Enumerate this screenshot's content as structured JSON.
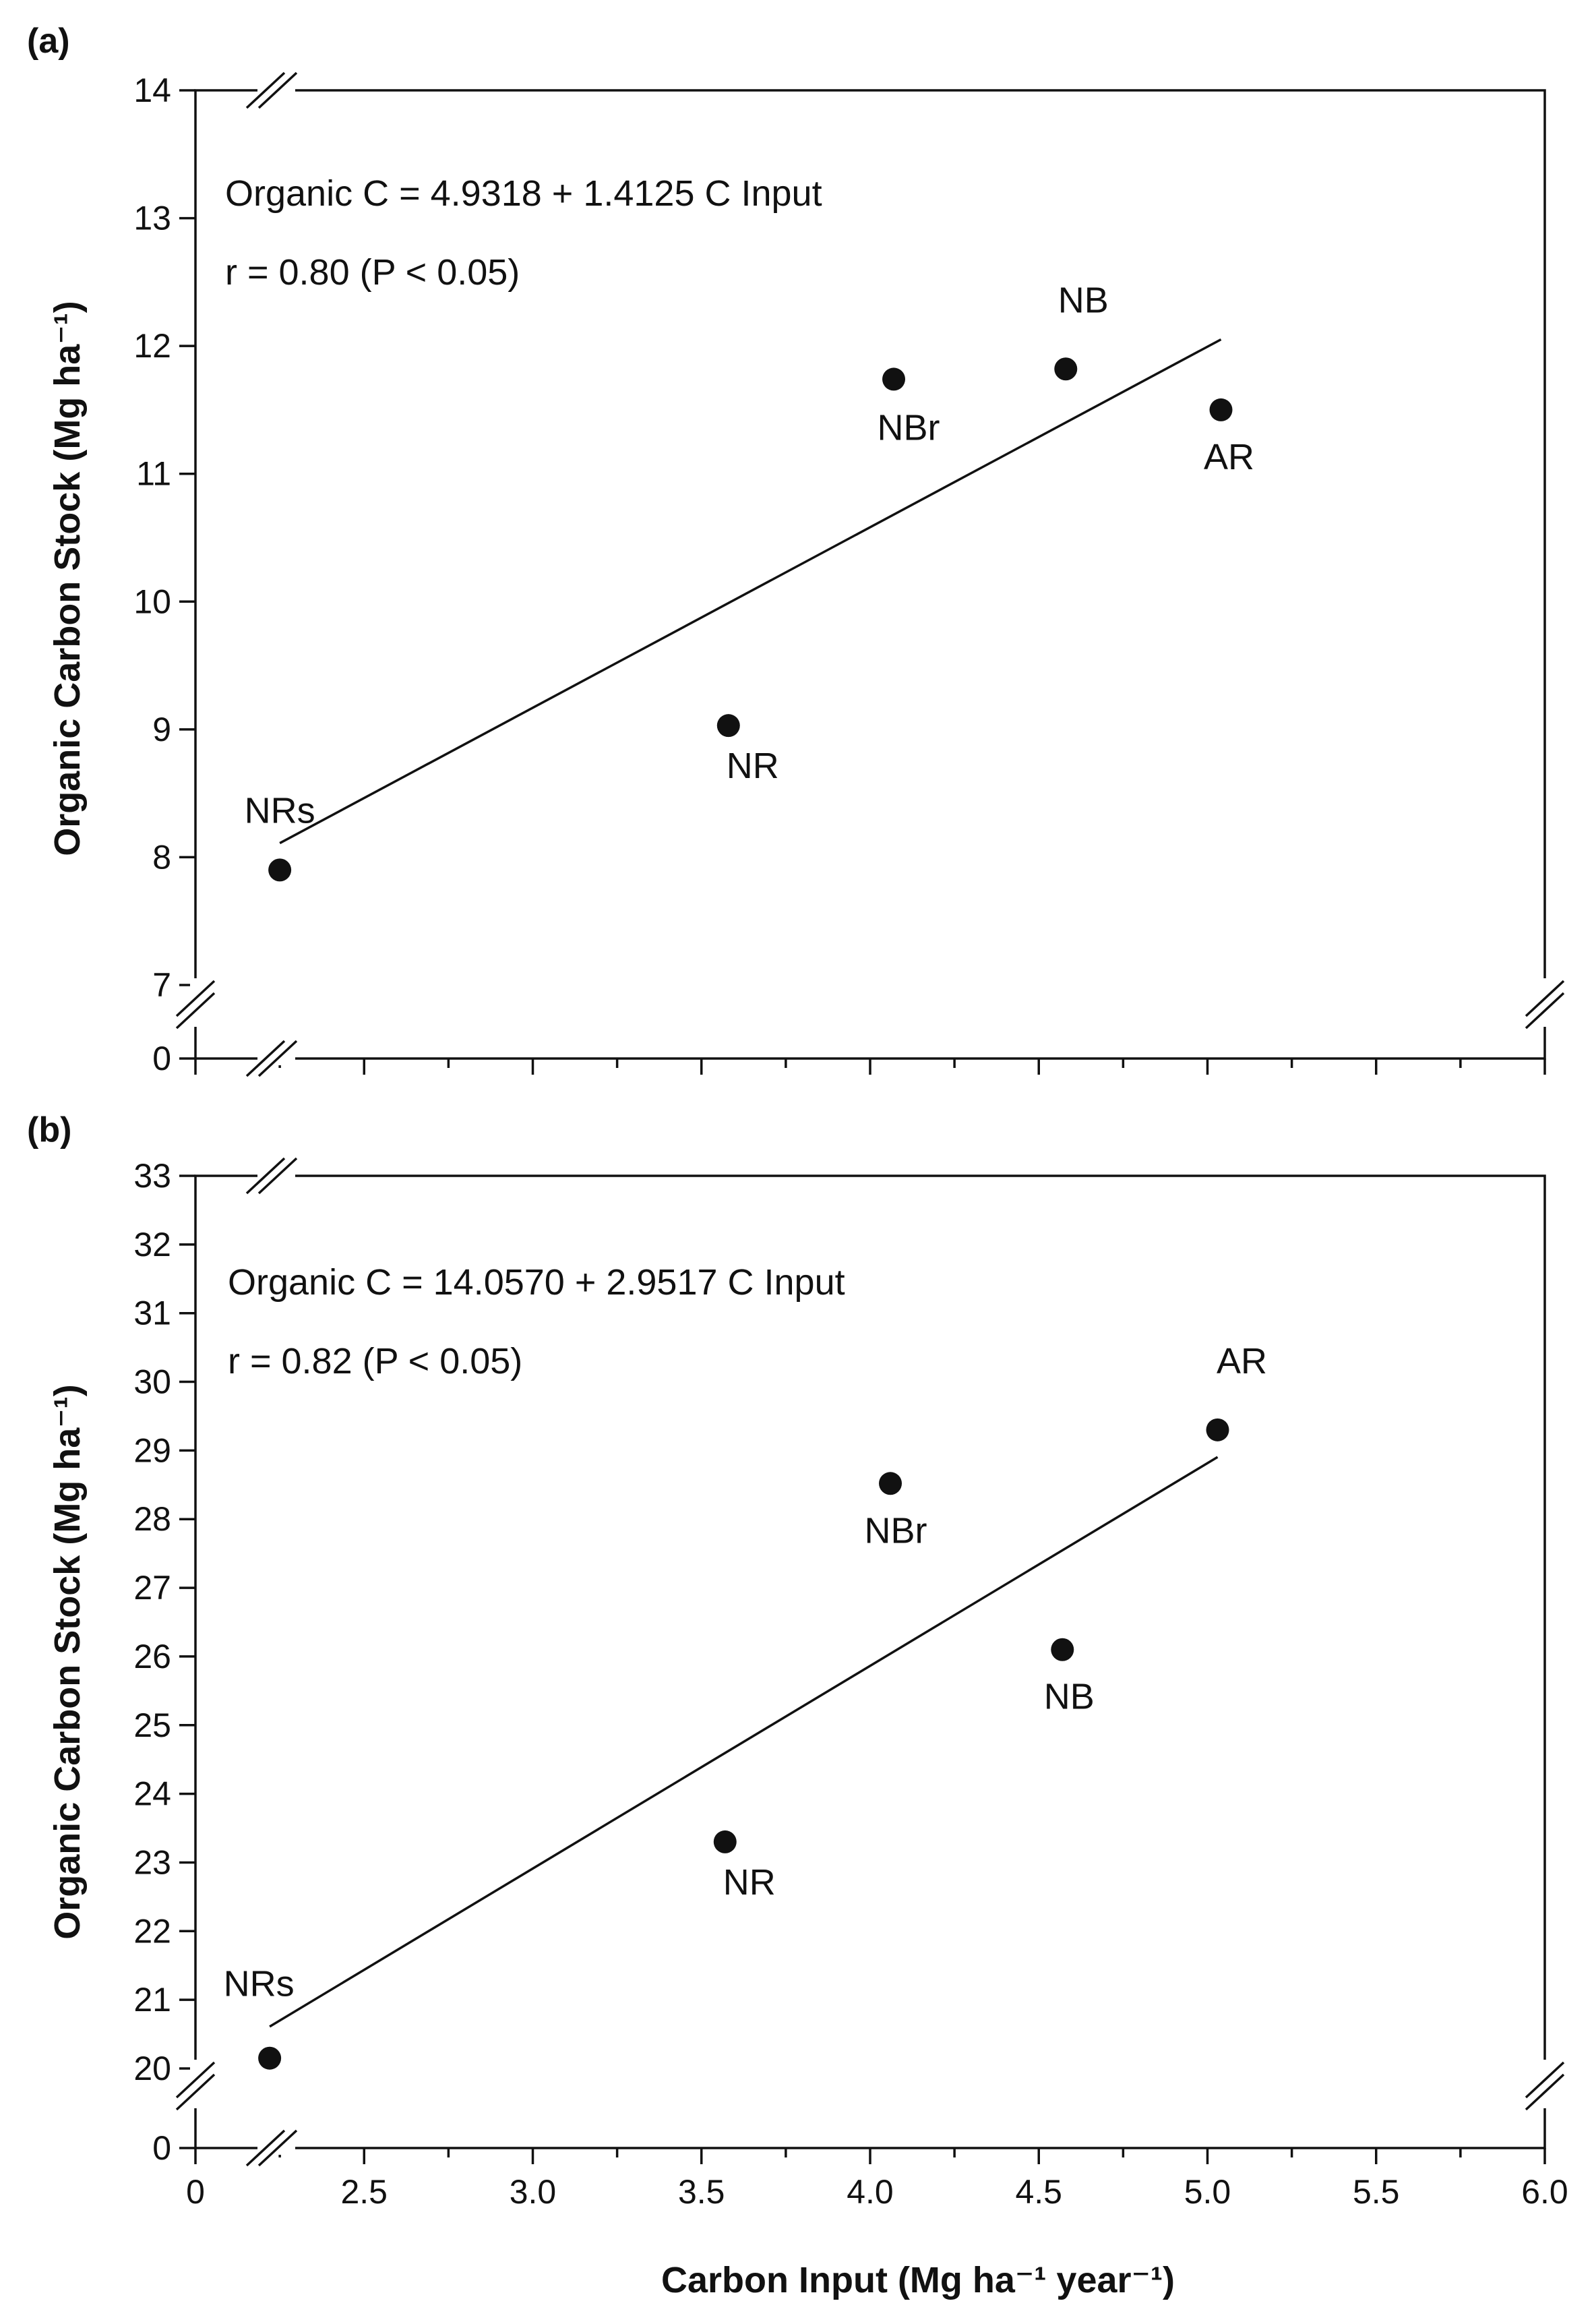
{
  "chart_data": [
    {
      "panel": "(a)",
      "type": "scatter",
      "ylabel": "Organic Carbon Stock (Mg ha⁻¹)",
      "ylim": [
        7,
        14
      ],
      "yticks": [
        "7",
        "8",
        "9",
        "10",
        "11",
        "12",
        "13",
        "14"
      ],
      "y_break_tick": "0",
      "points": [
        {
          "label": "NRs",
          "x": 2.25,
          "y": 7.9
        },
        {
          "label": "NR",
          "x": 3.58,
          "y": 9.03
        },
        {
          "label": "NBr",
          "x": 4.07,
          "y": 11.74
        },
        {
          "label": "NB",
          "x": 4.58,
          "y": 11.82
        },
        {
          "label": "AR",
          "x": 5.04,
          "y": 11.5
        }
      ],
      "fit": {
        "intercept": 4.9318,
        "slope": 1.4125,
        "x_range": [
          2.25,
          5.04
        ]
      },
      "equation": "Organic C = 4.9318 + 1.4125 C Input",
      "r_text": "r = 0.80 (P < 0.05)"
    },
    {
      "panel": "(b)",
      "type": "scatter",
      "ylabel": "Organic Carbon Stock (Mg ha⁻¹)",
      "ylim": [
        20,
        33
      ],
      "yticks": [
        "20",
        "21",
        "22",
        "23",
        "24",
        "25",
        "26",
        "27",
        "28",
        "29",
        "30",
        "31",
        "32",
        "33"
      ],
      "y_break_tick": "0",
      "points": [
        {
          "label": "NRs",
          "x": 2.22,
          "y": 20.15
        },
        {
          "label": "NR",
          "x": 3.57,
          "y": 23.3
        },
        {
          "label": "NBr",
          "x": 4.06,
          "y": 28.52
        },
        {
          "label": "NB",
          "x": 4.57,
          "y": 26.1
        },
        {
          "label": "AR",
          "x": 5.03,
          "y": 29.3
        }
      ],
      "fit": {
        "intercept": 14.057,
        "slope": 2.9517,
        "x_range": [
          2.22,
          5.03
        ]
      },
      "equation": "Organic C = 14.0570 + 2.9517 C Input",
      "r_text": "r = 0.82 (P < 0.05)"
    }
  ],
  "x_axis": {
    "xlabel": "Carbon Input (Mg ha⁻¹ year⁻¹)",
    "xlim": [
      2.0,
      6.0
    ],
    "origin_label": "0",
    "ticks": [
      {
        "value": 2.5,
        "label": "2.5"
      },
      {
        "value": 3.0,
        "label": "3.0"
      },
      {
        "value": 3.5,
        "label": "3.5"
      },
      {
        "value": 4.0,
        "label": "4.0"
      },
      {
        "value": 4.5,
        "label": "4.5"
      },
      {
        "value": 5.0,
        "label": "5.0"
      },
      {
        "value": 5.5,
        "label": "5.5"
      },
      {
        "value": 6.0,
        "label": "6.0"
      }
    ]
  }
}
